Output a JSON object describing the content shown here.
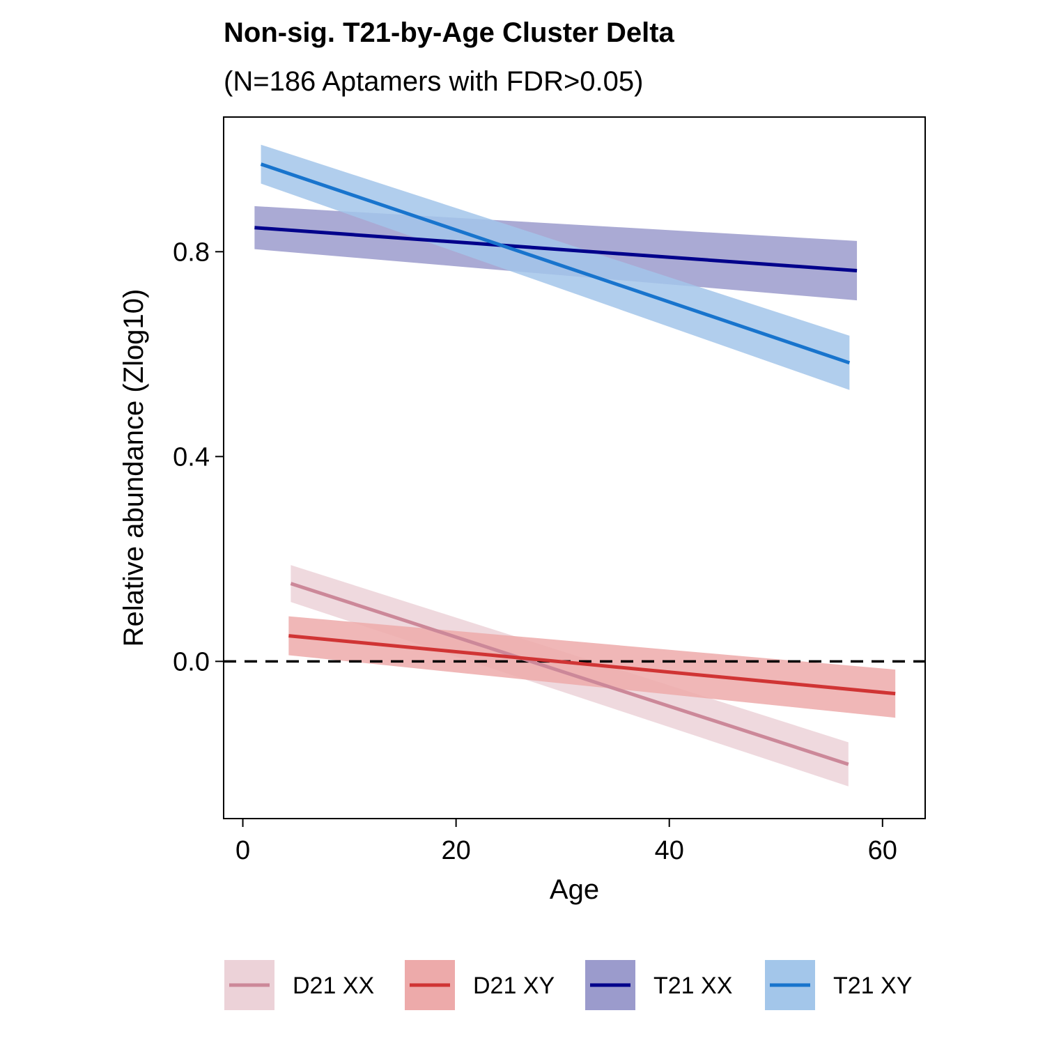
{
  "chart_data": {
    "type": "line",
    "title": "Non-sig. T21-by-Age Cluster Delta",
    "subtitle": "(N=186 Aptamers with FDR>0.05)",
    "xlabel": "Age",
    "ylabel": "Relative abundance (Zlog10)",
    "xlim": [
      -1.8,
      64
    ],
    "ylim": [
      -0.307,
      1.063
    ],
    "xticks": [
      0,
      20,
      40,
      60
    ],
    "xtick_labels": [
      "0",
      "20",
      "40",
      "60"
    ],
    "yticks": [
      0.0,
      0.4,
      0.8
    ],
    "ytick_labels": [
      "0.0",
      "0.4",
      "0.8"
    ],
    "reference_line": {
      "y": 0,
      "style": "dashed"
    },
    "grid": false,
    "legend_position": "bottom",
    "series": [
      {
        "name": "D21 XX",
        "color": "#cc8899",
        "fill": "#ecd2d8",
        "x": [
          4.5,
          56.8
        ],
        "fit": [
          0.152,
          -0.201
        ],
        "lower": [
          0.116,
          -0.244
        ],
        "upper": [
          0.188,
          -0.158
        ]
      },
      {
        "name": "D21 XY",
        "color": "#d03434",
        "fill": "#edaaaa",
        "x": [
          4.3,
          61.2
        ],
        "fit": [
          0.05,
          -0.063
        ],
        "lower": [
          0.012,
          -0.11
        ],
        "upper": [
          0.088,
          -0.016
        ]
      },
      {
        "name": "T21 XX",
        "color": "#00008b",
        "fill": "#9b9bcc",
        "x": [
          1.1,
          57.6
        ],
        "fit": [
          0.847,
          0.763
        ],
        "lower": [
          0.805,
          0.705
        ],
        "upper": [
          0.889,
          0.821
        ]
      },
      {
        "name": "T21 XY",
        "color": "#1874cd",
        "fill": "#a3c6ea",
        "x": [
          1.7,
          56.9
        ],
        "fit": [
          0.971,
          0.583
        ],
        "lower": [
          0.933,
          0.53
        ],
        "upper": [
          1.009,
          0.636
        ]
      }
    ]
  }
}
